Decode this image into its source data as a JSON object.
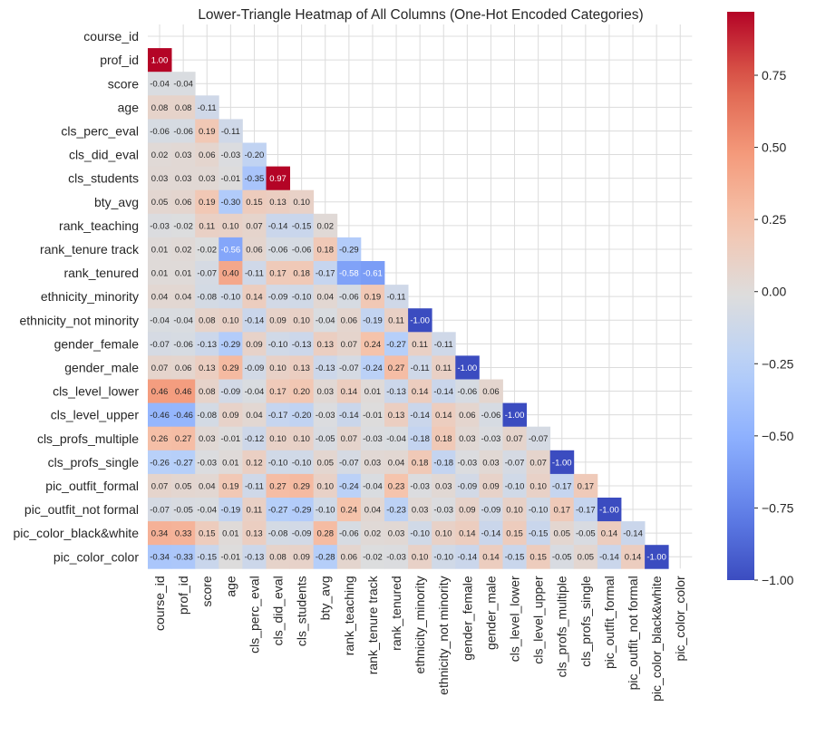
{
  "chart_data": {
    "type": "heatmap",
    "title": "Lower-Triangle Heatmap of All Columns (One-Hot Encoded Categories)",
    "xlabel": "",
    "ylabel": "",
    "grid": true,
    "mask": "upper-triangle-including-diagonal",
    "colormap": "coolwarm",
    "vmin": -1.0,
    "vmax": 0.97,
    "labels": [
      "course_id",
      "prof_id",
      "score",
      "age",
      "cls_perc_eval",
      "cls_did_eval",
      "cls_students",
      "bty_avg",
      "rank_teaching",
      "rank_tenure track",
      "rank_tenured",
      "ethnicity_minority",
      "ethnicity_not minority",
      "gender_female",
      "gender_male",
      "cls_level_lower",
      "cls_level_upper",
      "cls_profs_multiple",
      "cls_profs_single",
      "pic_outfit_formal",
      "pic_outfit_not formal",
      "pic_color_black&white",
      "pic_color_color"
    ],
    "lower_triangle": [
      [],
      [
        "1.00"
      ],
      [
        "-0.04",
        "-0.04"
      ],
      [
        "0.08",
        "0.08",
        "-0.11"
      ],
      [
        "-0.06",
        "-0.06",
        "0.19",
        "-0.11"
      ],
      [
        "0.02",
        "0.03",
        "0.06",
        "-0.03",
        "-0.20"
      ],
      [
        "0.03",
        "0.03",
        "0.03",
        "-0.01",
        "-0.35",
        "0.97"
      ],
      [
        "0.05",
        "0.06",
        "0.19",
        "-0.30",
        "0.15",
        "0.13",
        "0.10"
      ],
      [
        "-0.03",
        "-0.02",
        "0.11",
        "0.10",
        "0.07",
        "-0.14",
        "-0.15",
        "0.02"
      ],
      [
        "0.01",
        "0.02",
        "-0.02",
        "-0.56",
        "0.06",
        "-0.06",
        "-0.06",
        "0.18",
        "-0.29"
      ],
      [
        "0.01",
        "0.01",
        "-0.07",
        "0.40",
        "-0.11",
        "0.17",
        "0.18",
        "-0.17",
        "-0.58",
        "-0.61"
      ],
      [
        "0.04",
        "0.04",
        "-0.08",
        "-0.10",
        "0.14",
        "-0.09",
        "-0.10",
        "0.04",
        "-0.06",
        "0.19",
        "-0.11"
      ],
      [
        "-0.04",
        "-0.04",
        "0.08",
        "0.10",
        "-0.14",
        "0.09",
        "0.10",
        "-0.04",
        "0.06",
        "-0.19",
        "0.11",
        "-1.00"
      ],
      [
        "-0.07",
        "-0.06",
        "-0.13",
        "-0.29",
        "0.09",
        "-0.10",
        "-0.13",
        "0.13",
        "0.07",
        "0.24",
        "-0.27",
        "0.11",
        "-0.11"
      ],
      [
        "0.07",
        "0.06",
        "0.13",
        "0.29",
        "-0.09",
        "0.10",
        "0.13",
        "-0.13",
        "-0.07",
        "-0.24",
        "0.27",
        "-0.11",
        "0.11",
        "-1.00"
      ],
      [
        "0.46",
        "0.46",
        "0.08",
        "-0.09",
        "-0.04",
        "0.17",
        "0.20",
        "0.03",
        "0.14",
        "0.01",
        "-0.13",
        "0.14",
        "-0.14",
        "-0.06",
        "0.06"
      ],
      [
        "-0.46",
        "-0.46",
        "-0.08",
        "0.09",
        "0.04",
        "-0.17",
        "-0.20",
        "-0.03",
        "-0.14",
        "-0.01",
        "0.13",
        "-0.14",
        "0.14",
        "0.06",
        "-0.06",
        "-1.00"
      ],
      [
        "0.26",
        "0.27",
        "0.03",
        "-0.01",
        "-0.12",
        "0.10",
        "0.10",
        "-0.05",
        "0.07",
        "-0.03",
        "-0.04",
        "-0.18",
        "0.18",
        "0.03",
        "-0.03",
        "0.07",
        "-0.07"
      ],
      [
        "-0.26",
        "-0.27",
        "-0.03",
        "0.01",
        "0.12",
        "-0.10",
        "-0.10",
        "0.05",
        "-0.07",
        "0.03",
        "0.04",
        "0.18",
        "-0.18",
        "-0.03",
        "0.03",
        "-0.07",
        "0.07",
        "-1.00"
      ],
      [
        "0.07",
        "0.05",
        "0.04",
        "0.19",
        "-0.11",
        "0.27",
        "0.29",
        "0.10",
        "-0.24",
        "-0.04",
        "0.23",
        "-0.03",
        "0.03",
        "-0.09",
        "0.09",
        "-0.10",
        "0.10",
        "-0.17",
        "0.17"
      ],
      [
        "-0.07",
        "-0.05",
        "-0.04",
        "-0.19",
        "0.11",
        "-0.27",
        "-0.29",
        "-0.10",
        "0.24",
        "0.04",
        "-0.23",
        "0.03",
        "-0.03",
        "0.09",
        "-0.09",
        "0.10",
        "-0.10",
        "0.17",
        "-0.17",
        "-1.00"
      ],
      [
        "0.34",
        "0.33",
        "0.15",
        "0.01",
        "0.13",
        "-0.08",
        "-0.09",
        "0.28",
        "-0.06",
        "0.02",
        "0.03",
        "-0.10",
        "0.10",
        "0.14",
        "-0.14",
        "0.15",
        "-0.15",
        "0.05",
        "-0.05",
        "0.14",
        "-0.14"
      ],
      [
        "-0.34",
        "-0.33",
        "-0.15",
        "-0.01",
        "-0.13",
        "0.08",
        "0.09",
        "-0.28",
        "0.06",
        "-0.02",
        "-0.03",
        "0.10",
        "-0.10",
        "-0.14",
        "0.14",
        "-0.15",
        "0.15",
        "-0.05",
        "0.05",
        "-0.14",
        "0.14",
        "-1.00"
      ]
    ],
    "colorbar": {
      "ticks": [
        0.75,
        0.5,
        0.25,
        0.0,
        -0.25,
        -0.5,
        -0.75,
        -1.0
      ],
      "tick_labels": [
        "0.75",
        "0.50",
        "0.25",
        "0.00",
        "−0.25",
        "−0.50",
        "−0.75",
        "−1.00"
      ],
      "range": [
        -1.0,
        0.97
      ]
    }
  }
}
